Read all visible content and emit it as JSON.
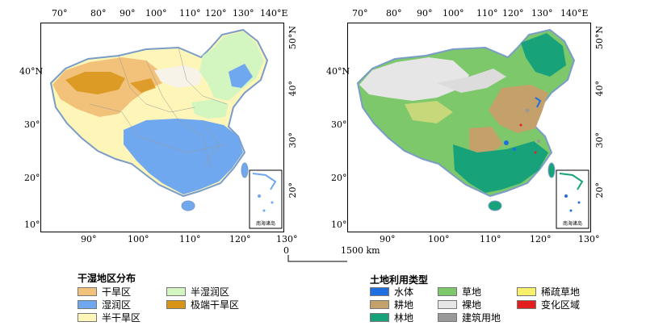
{
  "maps": {
    "left": {
      "top_ticks": [
        "70°",
        "80°",
        "90°",
        "100°",
        "110°",
        "120°",
        "130°",
        "140°E"
      ],
      "bottom_ticks": [
        "90°",
        "100°",
        "110°",
        "120°",
        "130°"
      ],
      "left_lat": [
        "40°N",
        "30°",
        "20°",
        "10°"
      ],
      "right_lat": [
        "50°N",
        "40°",
        "30°",
        "20°"
      ],
      "inset_label": "南海诸岛"
    },
    "right": {
      "top_ticks": [
        "70°",
        "80°",
        "90°",
        "100°",
        "110°",
        "120°",
        "130°",
        "140°E"
      ],
      "bottom_ticks": [
        "90°",
        "100°",
        "110°",
        "120°",
        "130°"
      ],
      "left_lat": [
        "40°N",
        "30°",
        "20°",
        "10°"
      ],
      "right_lat": [
        "50°N",
        "40°",
        "30°",
        "20°"
      ],
      "inset_label": "南海诸岛"
    }
  },
  "scale": {
    "start": "0",
    "end": "1500 km"
  },
  "legend_climate": {
    "title": "干湿地区分布",
    "items": [
      {
        "label": "干旱区",
        "color": "#f2c27a"
      },
      {
        "label": "湿润区",
        "color": "#6fa8ee"
      },
      {
        "label": "半干旱区",
        "color": "#fdf6b8"
      },
      {
        "label": "半湿润区",
        "color": "#d3f5c0"
      },
      {
        "label": "极端干旱区",
        "color": "#d89416"
      }
    ]
  },
  "legend_landuse": {
    "title": "土地利用类型",
    "items": [
      {
        "label": "水体",
        "color": "#1f6fe0"
      },
      {
        "label": "耕地",
        "color": "#c4a06a"
      },
      {
        "label": "林地",
        "color": "#17a27a"
      },
      {
        "label": "草地",
        "color": "#7cc86a"
      },
      {
        "label": "裸地",
        "color": "#e6e6e6"
      },
      {
        "label": "建筑用地",
        "color": "#999999"
      },
      {
        "label": "稀疏草地",
        "color": "#f8f06a"
      },
      {
        "label": "变化区域",
        "color": "#e41e1e"
      }
    ]
  }
}
